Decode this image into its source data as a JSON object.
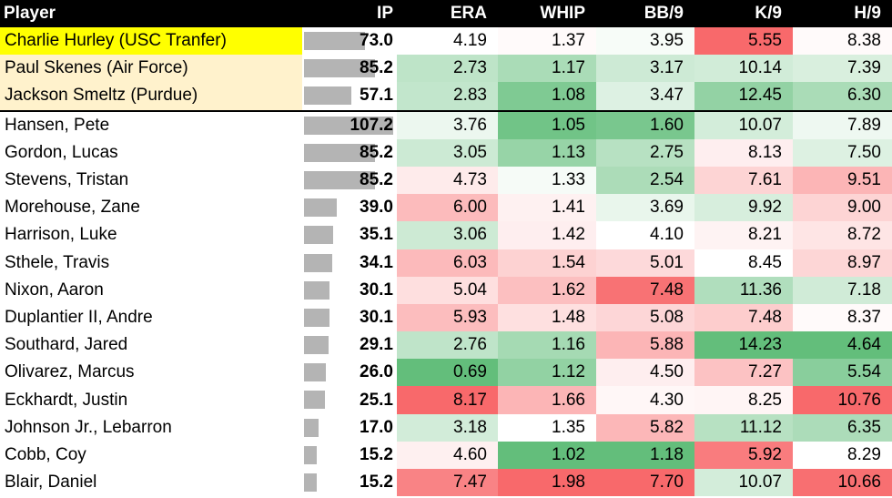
{
  "chart_data": {
    "type": "table",
    "columns": [
      "Player",
      "IP",
      "ERA",
      "WHIP",
      "BB/9",
      "K/9",
      "H/9"
    ],
    "rows": [
      {
        "player": "Charlie Hurley (USC Tranfer)",
        "ip": "73.0",
        "era": "4.19",
        "whip": "1.37",
        "bb9": "3.95",
        "k9": "5.55",
        "h9": "8.38",
        "group": "highlight"
      },
      {
        "player": "Paul Skenes (Air Force)",
        "ip": "85.2",
        "era": "2.73",
        "whip": "1.17",
        "bb9": "3.17",
        "k9": "10.14",
        "h9": "7.39",
        "group": "transfer"
      },
      {
        "player": "Jackson Smeltz (Purdue)",
        "ip": "57.1",
        "era": "2.83",
        "whip": "1.08",
        "bb9": "3.47",
        "k9": "12.45",
        "h9": "6.30",
        "group": "transfer"
      },
      {
        "player": "Hansen, Pete",
        "ip": "107.2",
        "era": "3.76",
        "whip": "1.05",
        "bb9": "1.60",
        "k9": "10.07",
        "h9": "7.89",
        "group": "roster"
      },
      {
        "player": "Gordon, Lucas",
        "ip": "85.2",
        "era": "3.05",
        "whip": "1.13",
        "bb9": "2.75",
        "k9": "8.13",
        "h9": "7.50",
        "group": "roster"
      },
      {
        "player": "Stevens, Tristan",
        "ip": "85.2",
        "era": "4.73",
        "whip": "1.33",
        "bb9": "2.54",
        "k9": "7.61",
        "h9": "9.51",
        "group": "roster"
      },
      {
        "player": "Morehouse, Zane",
        "ip": "39.0",
        "era": "6.00",
        "whip": "1.41",
        "bb9": "3.69",
        "k9": "9.92",
        "h9": "9.00",
        "group": "roster"
      },
      {
        "player": "Harrison, Luke",
        "ip": "35.1",
        "era": "3.06",
        "whip": "1.42",
        "bb9": "4.10",
        "k9": "8.21",
        "h9": "8.72",
        "group": "roster"
      },
      {
        "player": "Sthele, Travis",
        "ip": "34.1",
        "era": "6.03",
        "whip": "1.54",
        "bb9": "5.01",
        "k9": "8.45",
        "h9": "8.97",
        "group": "roster"
      },
      {
        "player": "Nixon, Aaron",
        "ip": "30.1",
        "era": "5.04",
        "whip": "1.62",
        "bb9": "7.48",
        "k9": "11.36",
        "h9": "7.18",
        "group": "roster"
      },
      {
        "player": "Duplantier II, Andre",
        "ip": "30.1",
        "era": "5.93",
        "whip": "1.48",
        "bb9": "5.08",
        "k9": "7.48",
        "h9": "8.37",
        "group": "roster"
      },
      {
        "player": "Southard, Jared",
        "ip": "29.1",
        "era": "2.76",
        "whip": "1.16",
        "bb9": "5.88",
        "k9": "14.23",
        "h9": "4.64",
        "group": "roster"
      },
      {
        "player": "Olivarez, Marcus",
        "ip": "26.0",
        "era": "0.69",
        "whip": "1.12",
        "bb9": "4.50",
        "k9": "7.27",
        "h9": "5.54",
        "group": "roster"
      },
      {
        "player": "Eckhardt, Justin",
        "ip": "25.1",
        "era": "8.17",
        "whip": "1.66",
        "bb9": "4.30",
        "k9": "8.25",
        "h9": "10.76",
        "group": "roster"
      },
      {
        "player": "Johnson Jr., Lebarron",
        "ip": "17.0",
        "era": "3.18",
        "whip": "1.35",
        "bb9": "5.82",
        "k9": "11.12",
        "h9": "6.35",
        "group": "roster"
      },
      {
        "player": "Cobb, Coy",
        "ip": "15.2",
        "era": "4.60",
        "whip": "1.02",
        "bb9": "1.18",
        "k9": "5.92",
        "h9": "8.29",
        "group": "roster"
      },
      {
        "player": "Blair, Daniel",
        "ip": "15.2",
        "era": "7.47",
        "whip": "1.98",
        "bb9": "7.70",
        "k9": "10.07",
        "h9": "10.66",
        "group": "roster"
      }
    ],
    "ip_bar_max": 107.2,
    "color_scales": {
      "era": {
        "good": "low"
      },
      "whip": {
        "good": "low"
      },
      "bb9": {
        "good": "low"
      },
      "k9": {
        "good": "high"
      },
      "h9": {
        "good": "low"
      }
    },
    "colors": {
      "good": "#63be7b",
      "neutral": "#ffffff",
      "bad": "#f8696b",
      "ip_bar": "#b4b4b4",
      "highlight": "#ffff00",
      "transfer": "#fff2cc",
      "header_bg": "#000000",
      "header_text": "#ffffff"
    }
  }
}
